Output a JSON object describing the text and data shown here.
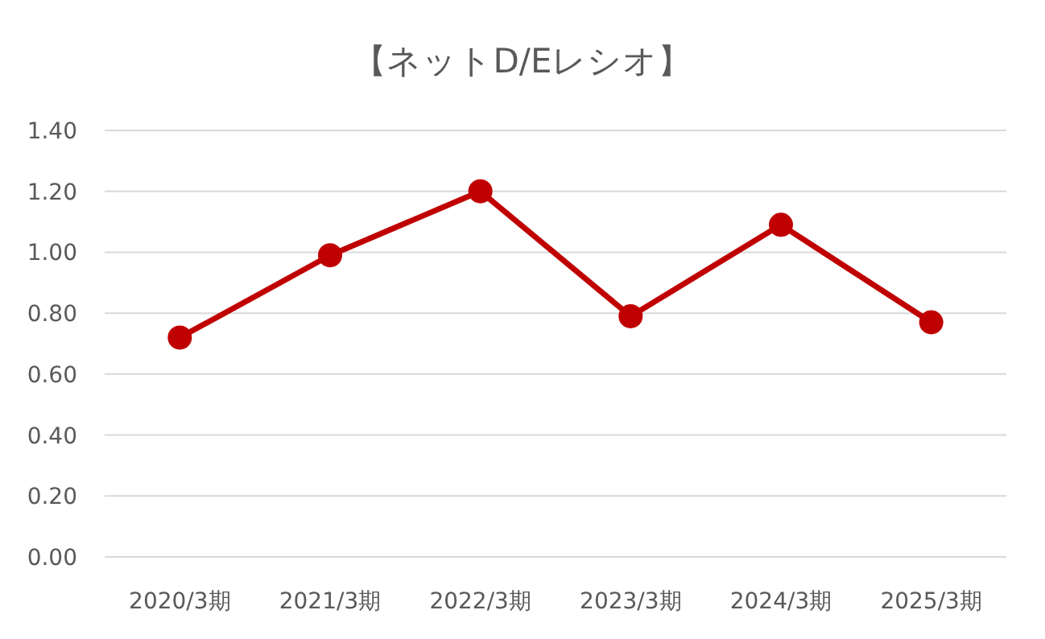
{
  "chart_data": {
    "type": "line",
    "title": "【ネットD/Eレシオ】",
    "categories": [
      "2020/3期",
      "2021/3期",
      "2022/3期",
      "2023/3期",
      "2024/3期",
      "2025/3期"
    ],
    "series": [
      {
        "color": "#c00000",
        "values": [
          0.72,
          0.99,
          1.2,
          0.79,
          1.09,
          0.77
        ]
      }
    ],
    "ylim": [
      0,
      1.4
    ],
    "yticks": [
      {
        "value": 0,
        "label": "0.00"
      },
      {
        "value": 0.2,
        "label": "0.20"
      },
      {
        "value": 0.4,
        "label": "0.40"
      },
      {
        "value": 0.6,
        "label": "0.60"
      },
      {
        "value": 0.8,
        "label": "0.80"
      },
      {
        "value": 1.0,
        "label": "1.00"
      },
      {
        "value": 1.2,
        "label": "1.20"
      },
      {
        "value": 1.4,
        "label": "1.40"
      }
    ],
    "grid": "y",
    "marker": "circle",
    "line_style": "solid"
  }
}
